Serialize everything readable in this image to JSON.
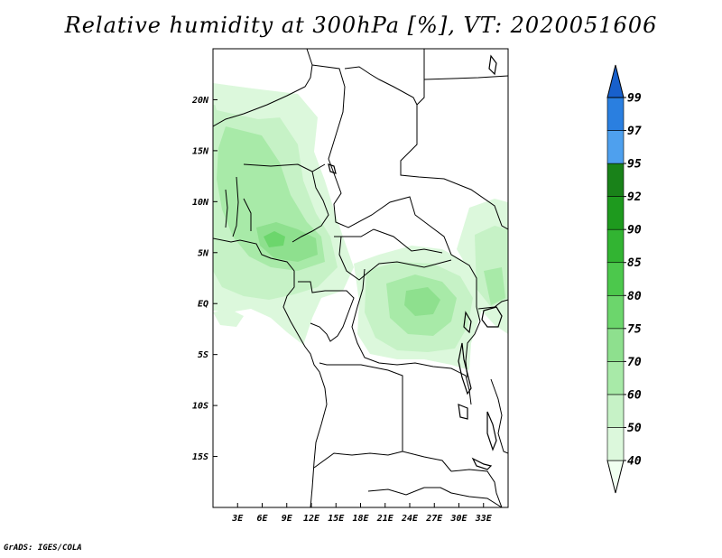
{
  "title": "Relative humidity at 300hPa [%], VT: 2020051606",
  "credit": "GrADS: IGES/COLA",
  "map": {
    "lon_range": [
      0,
      36
    ],
    "lat_range": [
      -20,
      25
    ],
    "x_ticks": [
      "3E",
      "6E",
      "9E",
      "12E",
      "15E",
      "18E",
      "21E",
      "24E",
      "27E",
      "30E",
      "33E"
    ],
    "x_tick_values": [
      3,
      6,
      9,
      12,
      15,
      18,
      21,
      24,
      27,
      30,
      33
    ],
    "y_ticks": [
      "20N",
      "15N",
      "10N",
      "5N",
      "EQ",
      "5S",
      "10S",
      "15S"
    ],
    "y_tick_values": [
      20,
      15,
      10,
      5,
      0,
      -5,
      -10,
      -15
    ]
  },
  "colorbar": {
    "levels": [
      "40",
      "50",
      "60",
      "70",
      "75",
      "80",
      "85",
      "90",
      "92",
      "95",
      "97",
      "99"
    ],
    "colors": [
      "#f0fff0",
      "#dcf8dc",
      "#c6f2c6",
      "#a8eaa8",
      "#8ee08e",
      "#6cd66c",
      "#4cc84c",
      "#32b432",
      "#1e9a1e",
      "#198219",
      "#4ea0ee",
      "#2a7fe0",
      "#1860cc"
    ]
  }
}
